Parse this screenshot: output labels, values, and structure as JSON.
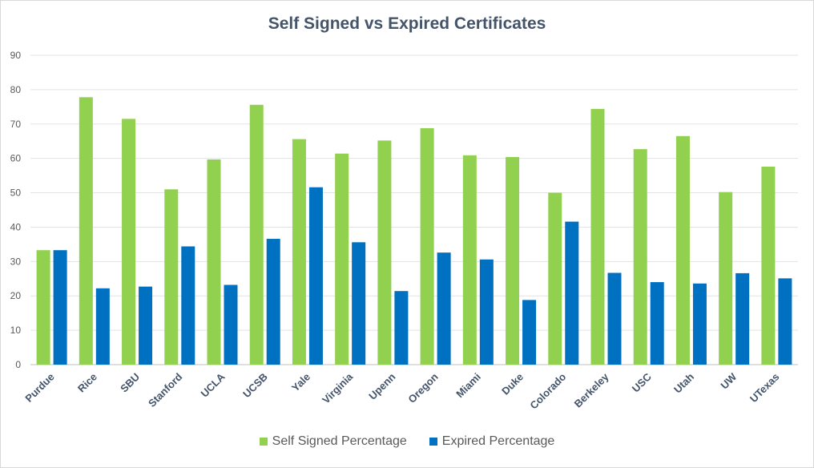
{
  "chart_data": {
    "type": "bar",
    "title": "Self Signed vs Expired Certificates",
    "xlabel": "",
    "ylabel": "",
    "ylim": [
      0,
      90
    ],
    "yticks": [
      0,
      10,
      20,
      30,
      40,
      50,
      60,
      70,
      80,
      90
    ],
    "grid": true,
    "legend_position": "bottom",
    "categories": [
      "Purdue",
      "Rice",
      "SBU",
      "Stanford",
      "UCLA",
      "UCSB",
      "Yale",
      "Virginia",
      "Upenn",
      "Oregon",
      "Miami",
      "Duke",
      "Colorado",
      "Berkeley",
      "USC",
      "Utah",
      "UW",
      "UTexas"
    ],
    "series": [
      {
        "name": "Self Signed Percentage",
        "color": "#92d050",
        "values": [
          33.3,
          77.8,
          71.5,
          51.0,
          59.7,
          75.6,
          65.6,
          61.4,
          65.2,
          68.8,
          60.9,
          60.4,
          50.0,
          74.4,
          62.7,
          66.5,
          50.2,
          57.6
        ]
      },
      {
        "name": "Expired Percentage",
        "color": "#0070c0",
        "values": [
          33.3,
          22.2,
          22.7,
          34.4,
          23.2,
          36.6,
          51.6,
          35.6,
          21.4,
          32.6,
          30.6,
          18.8,
          41.6,
          26.7,
          24.0,
          23.6,
          26.6,
          25.1
        ]
      }
    ]
  }
}
